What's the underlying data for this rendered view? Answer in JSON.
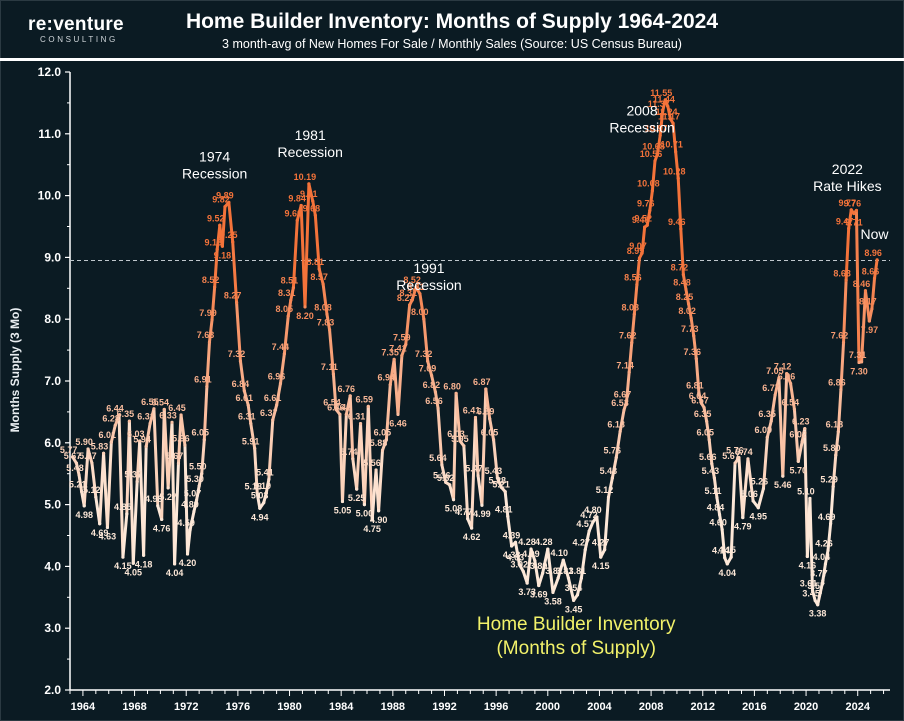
{
  "brand": {
    "logo_main": "re:venture",
    "logo_sub": "CONSULTING"
  },
  "title": "Home Builder Inventory: Months of Supply 1964-2024",
  "subtitle": "3 month-avg of New Homes For Sale / Monthly Sales (Source: US Census Bureau)",
  "colors": {
    "background": "#0b1b23",
    "low": "#fde8d8",
    "high": "#f4733a",
    "threshold_line": "#bfc7cc",
    "inner_title": "#f2f26a"
  },
  "chart_data": {
    "type": "line",
    "title": "Home Builder Inventory: Months of Supply 1964-2024",
    "subtitle": "3 month-avg of New Homes For Sale / Monthly Sales (Source: US Census Bureau)",
    "inner_title": [
      "Home Builder Inventory",
      "(Months of Supply)"
    ],
    "xlabel": "",
    "ylabel": "Months Supply (3 Mo)",
    "xlim": [
      1963,
      2026.5
    ],
    "ylim": [
      2.0,
      12.0
    ],
    "y_ticks": [
      "2.0",
      "3.0",
      "4.0",
      "5.0",
      "6.0",
      "7.0",
      "8.0",
      "9.0",
      "10.0",
      "11.0",
      "12.0"
    ],
    "x_ticks": [
      "1964",
      "1968",
      "1972",
      "1976",
      "1980",
      "1984",
      "1988",
      "1992",
      "1996",
      "2000",
      "2004",
      "2008",
      "2012",
      "2016",
      "2020",
      "2024"
    ],
    "threshold": 8.95,
    "grid": false,
    "legend": "none",
    "annotations": [
      {
        "lines": [
          "1974",
          "Recession"
        ],
        "x": 1974.2,
        "y": 10.55
      },
      {
        "lines": [
          "1981",
          "Recession"
        ],
        "x": 1981.6,
        "y": 10.9
      },
      {
        "lines": [
          "1991",
          "Recession"
        ],
        "x": 1990.8,
        "y": 8.75
      },
      {
        "lines": [
          "2008",
          "Recession"
        ],
        "x": 2007.3,
        "y": 11.3
      },
      {
        "lines": [
          "2022",
          "Rate Hikes"
        ],
        "x": 2023.2,
        "y": 10.35
      },
      {
        "lines": [
          "Now"
        ],
        "x": 2025.3,
        "y": 9.3
      }
    ],
    "series": [
      {
        "points": [
          [
            1963.2,
            5.77
          ],
          [
            1963.5,
            5.67
          ],
          [
            1963.7,
            5.48
          ],
          [
            1963.9,
            5.21
          ],
          [
            1964.1,
            4.98
          ],
          [
            1964.4,
            5.9
          ],
          [
            1964.7,
            5.67
          ],
          [
            1965.0,
            5.12
          ],
          [
            1965.3,
            4.69
          ],
          [
            1965.6,
            5.83
          ],
          [
            1965.9,
            4.63
          ],
          [
            1966.2,
            6.01
          ],
          [
            1966.5,
            6.28
          ],
          [
            1966.8,
            6.44
          ],
          [
            1967.1,
            4.15
          ],
          [
            1967.4,
            4.85
          ],
          [
            1967.6,
            6.35
          ],
          [
            1967.9,
            4.05
          ],
          [
            1968.2,
            5.37
          ],
          [
            1968.4,
            6.03
          ],
          [
            1968.7,
            4.18
          ],
          [
            1968.9,
            5.94
          ],
          [
            1969.2,
            6.31
          ],
          [
            1969.5,
            6.55
          ],
          [
            1969.8,
            4.98
          ],
          [
            1970.1,
            4.76
          ],
          [
            1970.3,
            6.54
          ],
          [
            1970.6,
            5.27
          ],
          [
            1970.9,
            6.33
          ],
          [
            1971.1,
            4.04
          ],
          [
            1971.4,
            5.67
          ],
          [
            1971.6,
            6.45
          ],
          [
            1971.9,
            5.96
          ],
          [
            1972.1,
            4.2
          ],
          [
            1972.3,
            4.59
          ],
          [
            1972.6,
            4.89
          ],
          [
            1972.8,
            5.07
          ],
          [
            1973.0,
            5.3
          ],
          [
            1973.2,
            5.5
          ],
          [
            1973.4,
            6.05
          ],
          [
            1973.6,
            6.91
          ],
          [
            1973.8,
            7.63
          ],
          [
            1974.0,
            7.99
          ],
          [
            1974.2,
            8.52
          ],
          [
            1974.4,
            9.13
          ],
          [
            1974.6,
            9.52
          ],
          [
            1974.8,
            9.18
          ],
          [
            1975.0,
            9.82
          ],
          [
            1975.3,
            9.89
          ],
          [
            1975.6,
            9.25
          ],
          [
            1975.9,
            8.27
          ],
          [
            1976.2,
            7.32
          ],
          [
            1976.5,
            6.84
          ],
          [
            1976.8,
            6.61
          ],
          [
            1977.0,
            6.31
          ],
          [
            1977.3,
            5.91
          ],
          [
            1977.5,
            5.18
          ],
          [
            1977.7,
            4.94
          ],
          [
            1978.0,
            5.03
          ],
          [
            1978.2,
            5.19
          ],
          [
            1978.4,
            5.41
          ],
          [
            1978.7,
            6.37
          ],
          [
            1979.0,
            6.61
          ],
          [
            1979.3,
            6.96
          ],
          [
            1979.6,
            7.44
          ],
          [
            1979.9,
            8.05
          ],
          [
            1980.1,
            8.31
          ],
          [
            1980.3,
            8.51
          ],
          [
            1980.6,
            9.6
          ],
          [
            1980.9,
            9.84
          ],
          [
            1981.2,
            8.2
          ],
          [
            1981.5,
            10.19
          ],
          [
            1981.8,
            9.91
          ],
          [
            1982.0,
            9.68
          ],
          [
            1982.3,
            8.81
          ],
          [
            1982.6,
            8.57
          ],
          [
            1982.9,
            8.08
          ],
          [
            1983.1,
            7.83
          ],
          [
            1983.4,
            7.11
          ],
          [
            1983.6,
            6.54
          ],
          [
            1983.9,
            6.46
          ],
          [
            1984.1,
            5.05
          ],
          [
            1984.4,
            6.46
          ],
          [
            1984.7,
            6.76
          ],
          [
            1984.9,
            5.74
          ],
          [
            1985.2,
            5.25
          ],
          [
            1985.5,
            6.31
          ],
          [
            1985.8,
            5.0
          ],
          [
            1986.1,
            6.59
          ],
          [
            1986.4,
            4.75
          ],
          [
            1986.7,
            5.56
          ],
          [
            1986.9,
            4.9
          ],
          [
            1987.2,
            5.88
          ],
          [
            1987.5,
            6.05
          ],
          [
            1987.8,
            6.94
          ],
          [
            1988.1,
            7.35
          ],
          [
            1988.4,
            6.46
          ],
          [
            1988.7,
            7.41
          ],
          [
            1989.0,
            7.59
          ],
          [
            1989.3,
            8.23
          ],
          [
            1989.5,
            8.31
          ],
          [
            1989.8,
            8.52
          ],
          [
            1990.1,
            8.41
          ],
          [
            1990.4,
            8.0
          ],
          [
            1990.7,
            7.32
          ],
          [
            1991.0,
            7.09
          ],
          [
            1991.3,
            6.82
          ],
          [
            1991.5,
            6.56
          ],
          [
            1991.8,
            5.64
          ],
          [
            1992.1,
            5.36
          ],
          [
            1992.4,
            5.32
          ],
          [
            1992.7,
            5.08
          ],
          [
            1992.9,
            6.8
          ],
          [
            1993.2,
            6.03
          ],
          [
            1993.5,
            5.95
          ],
          [
            1993.8,
            4.77
          ],
          [
            1994.1,
            4.62
          ],
          [
            1994.4,
            6.41
          ],
          [
            1994.6,
            5.47
          ],
          [
            1994.9,
            4.99
          ],
          [
            1995.2,
            6.87
          ],
          [
            1995.5,
            6.39
          ],
          [
            1995.8,
            6.05
          ],
          [
            1996.1,
            5.43
          ],
          [
            1996.4,
            5.28
          ],
          [
            1996.7,
            5.21
          ],
          [
            1996.9,
            4.81
          ],
          [
            1997.2,
            4.33
          ],
          [
            1997.5,
            4.39
          ],
          [
            1997.8,
            4.03
          ],
          [
            1998.1,
            3.92
          ],
          [
            1998.4,
            3.73
          ],
          [
            1998.7,
            4.28
          ],
          [
            1999.0,
            4.09
          ],
          [
            1999.3,
            3.69
          ],
          [
            1999.6,
            3.89
          ],
          [
            2000.0,
            4.28
          ],
          [
            2000.4,
            3.58
          ],
          [
            2000.8,
            3.81
          ],
          [
            2001.2,
            4.1
          ],
          [
            2001.6,
            3.81
          ],
          [
            2002.0,
            3.45
          ],
          [
            2002.3,
            3.54
          ],
          [
            2002.6,
            3.81
          ],
          [
            2002.9,
            4.27
          ],
          [
            2003.2,
            4.57
          ],
          [
            2003.5,
            4.72
          ],
          [
            2003.8,
            4.8
          ],
          [
            2004.1,
            4.15
          ],
          [
            2004.4,
            4.27
          ],
          [
            2004.7,
            5.12
          ],
          [
            2005.0,
            5.43
          ],
          [
            2005.3,
            5.76
          ],
          [
            2005.6,
            6.18
          ],
          [
            2005.9,
            6.53
          ],
          [
            2006.1,
            6.67
          ],
          [
            2006.3,
            7.14
          ],
          [
            2006.5,
            7.62
          ],
          [
            2006.7,
            8.08
          ],
          [
            2006.9,
            8.56
          ],
          [
            2007.1,
            8.99
          ],
          [
            2007.3,
            9.07
          ],
          [
            2007.5,
            9.49
          ],
          [
            2007.7,
            9.52
          ],
          [
            2007.9,
            9.76
          ],
          [
            2008.1,
            10.08
          ],
          [
            2008.3,
            10.56
          ],
          [
            2008.5,
            10.68
          ],
          [
            2008.7,
            10.97
          ],
          [
            2008.9,
            11.37
          ],
          [
            2009.1,
            11.55
          ],
          [
            2009.3,
            11.44
          ],
          [
            2009.5,
            11.24
          ],
          [
            2009.7,
            11.17
          ],
          [
            2009.9,
            10.71
          ],
          [
            2010.1,
            10.28
          ],
          [
            2010.3,
            9.46
          ],
          [
            2010.5,
            8.72
          ],
          [
            2010.7,
            8.48
          ],
          [
            2010.9,
            8.25
          ],
          [
            2011.1,
            8.02
          ],
          [
            2011.3,
            7.73
          ],
          [
            2011.5,
            7.36
          ],
          [
            2011.7,
            6.81
          ],
          [
            2011.9,
            6.64
          ],
          [
            2012.1,
            6.57
          ],
          [
            2012.3,
            6.35
          ],
          [
            2012.5,
            6.05
          ],
          [
            2012.7,
            5.66
          ],
          [
            2012.9,
            5.43
          ],
          [
            2013.1,
            5.11
          ],
          [
            2013.3,
            4.84
          ],
          [
            2013.5,
            4.6
          ],
          [
            2013.7,
            4.14
          ],
          [
            2013.9,
            4.04
          ],
          [
            2014.2,
            4.15
          ],
          [
            2014.5,
            5.67
          ],
          [
            2014.8,
            5.76
          ],
          [
            2015.1,
            4.79
          ],
          [
            2015.5,
            5.74
          ],
          [
            2015.9,
            5.06
          ],
          [
            2016.3,
            4.95
          ],
          [
            2016.7,
            5.26
          ],
          [
            2017.0,
            6.09
          ],
          [
            2017.3,
            6.35
          ],
          [
            2017.6,
            6.77
          ],
          [
            2017.9,
            7.05
          ],
          [
            2018.2,
            5.46
          ],
          [
            2018.5,
            7.12
          ],
          [
            2018.8,
            6.96
          ],
          [
            2019.1,
            6.54
          ],
          [
            2019.4,
            5.7
          ],
          [
            2019.7,
            6.02
          ],
          [
            2019.9,
            6.23
          ],
          [
            2020.1,
            4.16
          ],
          [
            2020.3,
            5.1
          ],
          [
            2020.5,
            3.61
          ],
          [
            2020.7,
            3.45
          ],
          [
            2020.9,
            3.38
          ],
          [
            2021.1,
            3.57
          ],
          [
            2021.3,
            3.77
          ],
          [
            2021.5,
            4.04
          ],
          [
            2021.7,
            4.26
          ],
          [
            2021.9,
            4.69
          ],
          [
            2022.1,
            5.29
          ],
          [
            2022.3,
            5.8
          ],
          [
            2022.5,
            6.18
          ],
          [
            2022.7,
            6.86
          ],
          [
            2022.9,
            7.62
          ],
          [
            2023.1,
            8.63
          ],
          [
            2023.3,
            9.47
          ],
          [
            2023.5,
            9.77
          ],
          [
            2023.7,
            9.71
          ],
          [
            2023.9,
            9.76
          ],
          [
            2024.1,
            7.3
          ],
          [
            2024.3,
            7.31
          ],
          [
            2024.6,
            8.46
          ],
          [
            2024.9,
            7.97
          ],
          [
            2025.1,
            8.17
          ],
          [
            2025.3,
            8.66
          ],
          [
            2025.5,
            8.96
          ]
        ]
      }
    ]
  }
}
